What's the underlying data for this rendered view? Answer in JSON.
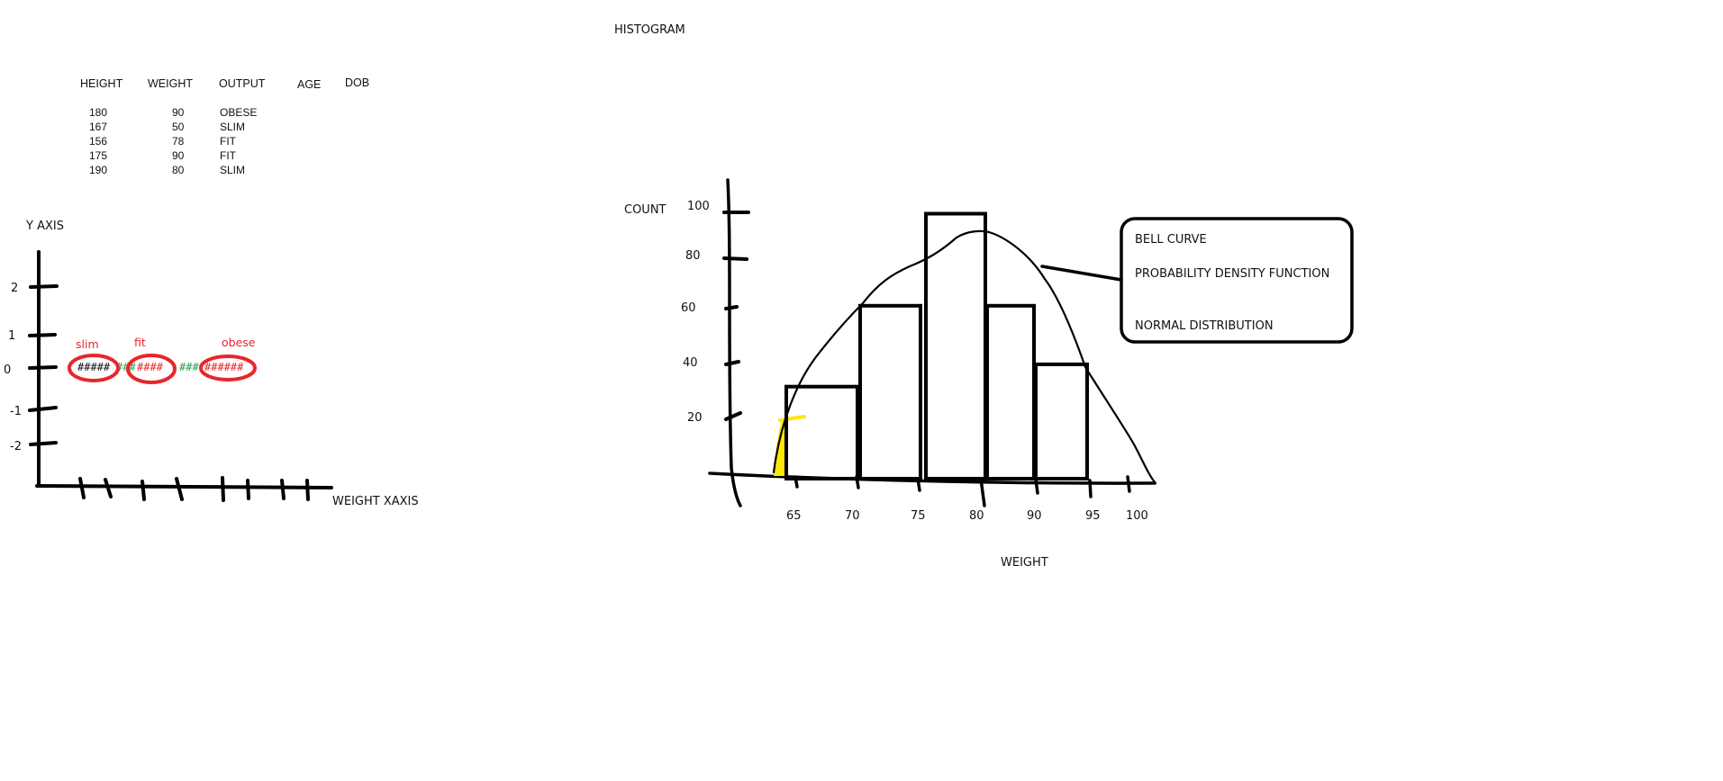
{
  "histogram_title": "HISTOGRAM",
  "table": {
    "headers": [
      "HEIGHT",
      "WEIGHT",
      "OUTPUT",
      "AGE",
      "DOB"
    ],
    "rows": [
      {
        "height": "180",
        "weight": "90",
        "output": "OBESE"
      },
      {
        "height": "167",
        "weight": "50",
        "output": "SLIM"
      },
      {
        "height": "156",
        "weight": "78",
        "output": "FIT"
      },
      {
        "height": "175",
        "weight": "90",
        "output": "FIT"
      },
      {
        "height": "190",
        "weight": "80",
        "output": "SLIM"
      }
    ]
  },
  "left_plot": {
    "y_axis_label": "Y AXIS",
    "x_axis_label": "WEIGHT XAXIS",
    "y_ticks": [
      "2",
      "1",
      "0",
      "-1",
      "-2"
    ],
    "clusters": [
      {
        "label": "slim",
        "text": "#####"
      },
      {
        "label": "fit",
        "text": "####"
      },
      {
        "label": "obese",
        "text": "######"
      }
    ],
    "connectors": [
      "###",
      "###"
    ],
    "colors": {
      "cluster": "#e8262b",
      "connector": "#22a04b",
      "ink": "#000000"
    }
  },
  "histogram": {
    "y_label": "COUNT",
    "x_label": "WEIGHT",
    "y_ticks": [
      "100",
      "80",
      "60",
      "40",
      "20"
    ],
    "x_ticks": [
      "65",
      "70",
      "75",
      "80",
      "90",
      "95",
      "100"
    ],
    "bar_counts": [
      33,
      62,
      95,
      62,
      41
    ],
    "highlight_color": "#ffe600"
  },
  "callout": {
    "lines": [
      "BELL CURVE",
      "PROBABILITY DENSITY FUNCTION",
      "NORMAL DISTRIBUTION"
    ]
  }
}
